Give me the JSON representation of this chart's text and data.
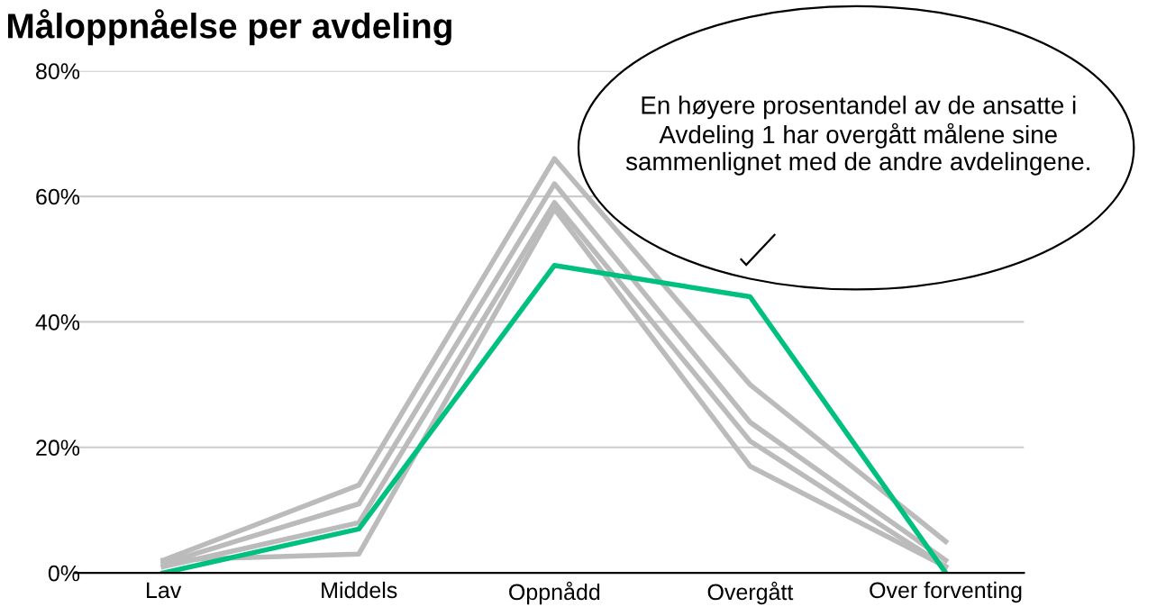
{
  "chart_data": {
    "type": "line",
    "title": "Måloppnåelse per avdeling",
    "categories": [
      "Lav",
      "Middels",
      "Oppnådd",
      "Overgått",
      "Over forventing"
    ],
    "series": [
      {
        "color": "#bbbbbb",
        "values": [
          2,
          14,
          66,
          30,
          5
        ]
      },
      {
        "color": "#bbbbbb",
        "values": [
          1.5,
          11,
          62,
          24,
          2
        ]
      },
      {
        "color": "#bbbbbb",
        "values": [
          1,
          8,
          59,
          21,
          1
        ]
      },
      {
        "color": "#bbbbbb",
        "values": [
          2,
          3,
          58,
          17,
          1
        ]
      },
      {
        "color": "#00c07f",
        "values": [
          0,
          7,
          49,
          44,
          0
        ]
      }
    ],
    "ylim": [
      0,
      80
    ],
    "yticks": [
      {
        "value": 0,
        "label": "0%"
      },
      {
        "value": 20,
        "label": "20%"
      },
      {
        "value": 40,
        "label": "40%"
      },
      {
        "value": 60,
        "label": "60%"
      },
      {
        "value": 80,
        "label": "80%"
      }
    ],
    "grid": "y",
    "legend": false,
    "marker": "none",
    "line_style": "solid",
    "annotations": [
      "En høyere prosentandel av de ansatte i Avdeling 1 har overgått målene sine sammenlignet med de andre avdelingene."
    ]
  }
}
